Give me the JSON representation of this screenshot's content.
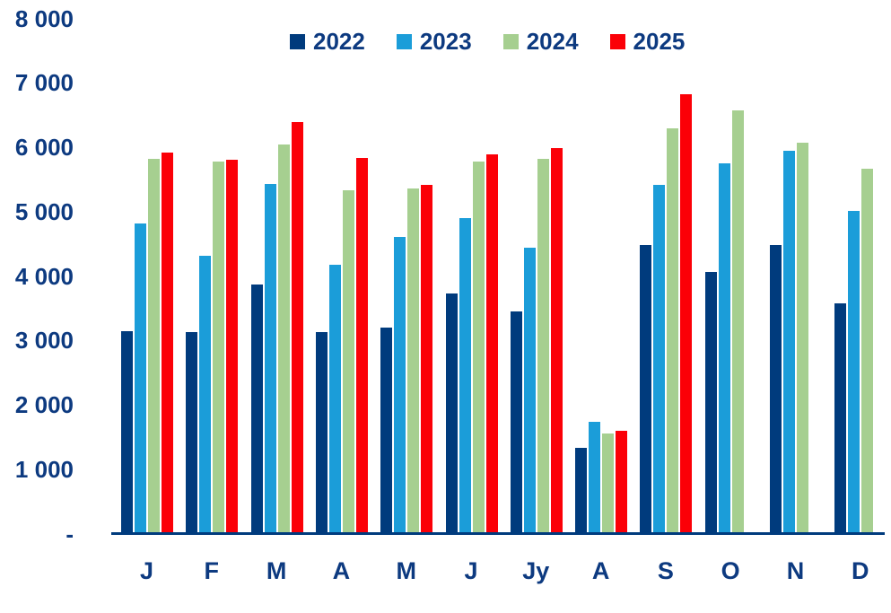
{
  "chart_data": {
    "type": "bar",
    "title": "",
    "xlabel": "",
    "ylabel": "",
    "categories": [
      "J",
      "F",
      "M",
      "A",
      "M",
      "J",
      "Jy",
      "A",
      "S",
      "O",
      "N",
      "D"
    ],
    "series": [
      {
        "name": "2022",
        "color": "#003b7d",
        "values": [
          3140,
          3130,
          3870,
          3130,
          3200,
          3730,
          3450,
          1330,
          4480,
          4060,
          4480,
          3580
        ]
      },
      {
        "name": "2023",
        "color": "#1b9dd9",
        "values": [
          4820,
          4310,
          5430,
          4170,
          4610,
          4900,
          4440,
          1730,
          5420,
          5750,
          5940,
          5010
        ]
      },
      {
        "name": "2024",
        "color": "#a6cf90",
        "values": [
          5820,
          5780,
          6040,
          5330,
          5360,
          5780,
          5820,
          1550,
          6290,
          6570,
          6070,
          5670
        ]
      },
      {
        "name": "2025",
        "color": "#fb0007",
        "values": [
          5920,
          5810,
          6390,
          5830,
          5420,
          5890,
          5990,
          1590,
          6820,
          null,
          null,
          null
        ]
      }
    ],
    "ylim": [
      0,
      8000
    ],
    "ytick_step": 1000,
    "ytick_labels": [
      "-",
      "1 000",
      "2 000",
      "3 000",
      "4 000",
      "5 000",
      "6 000",
      "7 000",
      "8 000"
    ],
    "legend_position": "top",
    "legend_entries": [
      "2022",
      "2023",
      "2024",
      "2025"
    ],
    "grid": false,
    "axis_color": "#003b7d",
    "text_color": "#0d3a80"
  }
}
